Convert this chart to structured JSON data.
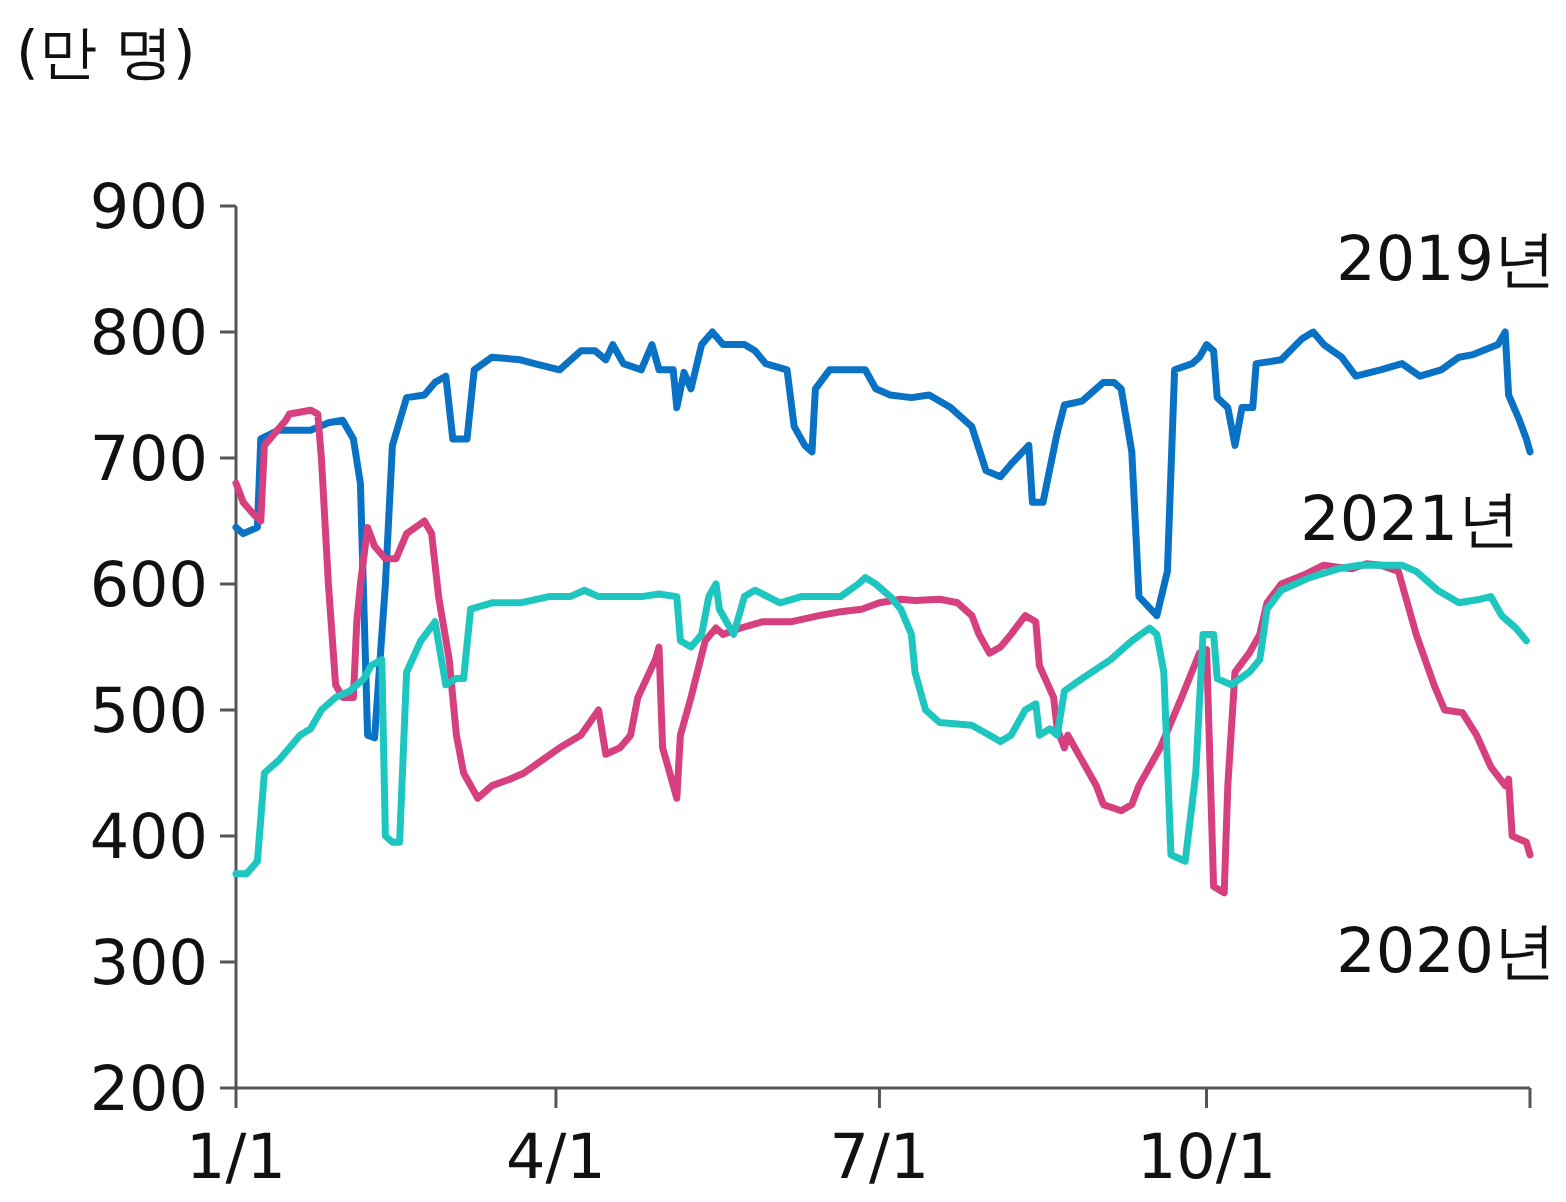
{
  "chart_data": {
    "type": "line",
    "ylabel": "(만 명)",
    "xlim": [
      "--01-01",
      "--12-31"
    ],
    "xticks": [
      {
        "value": "--01-01",
        "label": "1/1"
      },
      {
        "value": "--04-01",
        "label": "4/1"
      },
      {
        "value": "--07-01",
        "label": "7/1"
      },
      {
        "value": "--10-01",
        "label": "10/1"
      },
      {
        "value": "--12-31",
        "label": null
      }
    ],
    "ylim": [
      200,
      900
    ],
    "yticks": [
      200,
      300,
      400,
      500,
      600,
      700,
      800,
      900
    ],
    "series": [
      {
        "name": "2019년",
        "color": "#0a72c4",
        "x": [
          "--01-01",
          "--01-03",
          "--01-07",
          "--01-08",
          "--01-13",
          "--01-22",
          "--01-27",
          "--01-31",
          "--02-03",
          "--02-05",
          "--02-07",
          "--02-09",
          "--02-12",
          "--02-14",
          "--02-18",
          "--02-23",
          "--02-26",
          "--03-01",
          "--03-03",
          "--03-07",
          "--03-09",
          "--03-14",
          "--03-22",
          "--03-26",
          "--04-02",
          "--04-08",
          "--04-12",
          "--04-15",
          "--04-17",
          "--04-20",
          "--04-25",
          "--04-28",
          "--04-30",
          "--05-04",
          "--05-05",
          "--05-07",
          "--05-09",
          "--05-12",
          "--05-15",
          "--05-18",
          "--05-24",
          "--05-27",
          "--05-30",
          "--06-05",
          "--06-07",
          "--06-10",
          "--06-12",
          "--06-13",
          "--06-17",
          "--06-23",
          "--06-27",
          "--06-30",
          "--07-04",
          "--07-10",
          "--07-15",
          "--07-21",
          "--07-27",
          "--07-31",
          "--08-04",
          "--08-07",
          "--08-12",
          "--08-13",
          "--08-16",
          "--08-20",
          "--08-22",
          "--08-27",
          "--09-02",
          "--09-05",
          "--09-07",
          "--09-10",
          "--09-12",
          "--09-17",
          "--09-20",
          "--09-22",
          "--09-27",
          "--09-29",
          "--10-01",
          "--10-03",
          "--10-04",
          "--10-07",
          "--10-09",
          "--10-11",
          "--10-14",
          "--10-15",
          "--10-22",
          "--10-28",
          "--10-31",
          "--11-03",
          "--11-08",
          "--11-12",
          "--11-19",
          "--11-25",
          "--11-30",
          "--12-06",
          "--12-11",
          "--12-15",
          "--12-22",
          "--12-24",
          "--12-25",
          "--12-28",
          "--12-30",
          "--12-31"
        ],
        "values": [
          645,
          640,
          645,
          715,
          722,
          722,
          728,
          730,
          715,
          680,
          480,
          478,
          600,
          710,
          748,
          750,
          760,
          765,
          715,
          715,
          770,
          780,
          778,
          775,
          770,
          785,
          785,
          778,
          790,
          775,
          770,
          790,
          770,
          770,
          740,
          768,
          755,
          790,
          800,
          790,
          790,
          785,
          775,
          770,
          725,
          710,
          705,
          755,
          770,
          770,
          770,
          755,
          750,
          748,
          750,
          740,
          725,
          690,
          685,
          695,
          710,
          665,
          665,
          720,
          742,
          745,
          760,
          760,
          755,
          705,
          590,
          575,
          610,
          770,
          775,
          780,
          790,
          785,
          748,
          740,
          710,
          740,
          740,
          775,
          778,
          795,
          800,
          790,
          780,
          765,
          770,
          775,
          765,
          770,
          780,
          782,
          790,
          800,
          750,
          730,
          715,
          705
        ]
      },
      {
        "name": "2020년",
        "color": "#d6407f",
        "x": [
          "--01-01",
          "--01-03",
          "--01-06",
          "--01-08",
          "--01-09",
          "--01-12",
          "--01-15",
          "--01-16",
          "--01-22",
          "--01-24",
          "--01-25",
          "--01-27",
          "--01-29",
          "--01-31",
          "--02-03",
          "--02-04",
          "--02-05",
          "--02-07",
          "--02-09",
          "--02-12",
          "--02-15",
          "--02-18",
          "--02-23",
          "--02-25",
          "--02-27",
          "--03-02",
          "--03-04",
          "--03-06",
          "--03-10",
          "--03-14",
          "--03-19",
          "--03-23",
          "--03-28",
          "--04-02",
          "--04-08",
          "--04-13",
          "--04-15",
          "--04-19",
          "--04-22",
          "--04-24",
          "--04-29",
          "--04-30",
          "--05-01",
          "--05-03",
          "--05-05",
          "--05-06",
          "--05-09",
          "--05-13",
          "--05-16",
          "--05-18",
          "--05-23",
          "--05-29",
          "--06-06",
          "--06-14",
          "--06-20",
          "--06-26",
          "--07-01",
          "--07-07",
          "--07-11",
          "--07-18",
          "--07-23",
          "--07-27",
          "--07-29",
          "--08-01",
          "--08-04",
          "--08-07",
          "--08-11",
          "--08-14",
          "--08-15",
          "--08-19",
          "--08-20",
          "--08-22",
          "--08-23",
          "--08-27",
          "--08-31",
          "--09-02",
          "--09-07",
          "--09-10",
          "--09-12",
          "--09-18",
          "--09-24",
          "--09-29",
          "--10-01",
          "--10-03",
          "--10-06",
          "--10-07",
          "--10-09",
          "--10-13",
          "--10-16",
          "--10-18",
          "--10-22",
          "--10-29",
          "--11-03",
          "--11-08",
          "--11-11",
          "--11-15",
          "--11-19",
          "--11-24",
          "--11-29",
          "--12-04",
          "--12-07",
          "--12-12",
          "--12-16",
          "--12-20",
          "--12-24",
          "--12-25",
          "--12-26",
          "--12-30",
          "--12-31"
        ],
        "values": [
          680,
          665,
          655,
          650,
          710,
          720,
          730,
          735,
          738,
          735,
          700,
          600,
          520,
          510,
          510,
          570,
          600,
          645,
          630,
          620,
          620,
          640,
          650,
          640,
          590,
          540,
          480,
          450,
          430,
          440,
          445,
          450,
          460,
          470,
          480,
          500,
          465,
          470,
          480,
          510,
          540,
          550,
          470,
          450,
          430,
          480,
          510,
          555,
          565,
          560,
          565,
          570,
          570,
          575,
          578,
          580,
          585,
          588,
          587,
          588,
          585,
          575,
          560,
          545,
          550,
          560,
          575,
          570,
          535,
          510,
          485,
          470,
          480,
          460,
          440,
          425,
          420,
          425,
          440,
          470,
          510,
          545,
          548,
          360,
          355,
          440,
          530,
          545,
          560,
          585,
          600,
          608,
          615,
          613,
          612,
          616,
          615,
          610,
          560,
          520,
          500,
          498,
          480,
          455,
          440,
          445,
          400,
          395,
          385
        ]
      },
      {
        "name": "2021년",
        "color": "#1ec6c0",
        "x": [
          "--01-01",
          "--01-04",
          "--01-07",
          "--01-09",
          "--01-13",
          "--01-19",
          "--01-22",
          "--01-25",
          "--01-29",
          "--02-02",
          "--02-06",
          "--02-08",
          "--02-11",
          "--02-12",
          "--02-14",
          "--02-16",
          "--02-18",
          "--02-22",
          "--02-26",
          "--03-01",
          "--03-04",
          "--03-06",
          "--03-08",
          "--03-14",
          "--03-22",
          "--03-30",
          "--04-05",
          "--04-09",
          "--04-13",
          "--04-19",
          "--04-25",
          "--04-30",
          "--05-05",
          "--05-06",
          "--05-09",
          "--05-12",
          "--05-14",
          "--05-16",
          "--05-17",
          "--05-21",
          "--05-24",
          "--05-27",
          "--06-03",
          "--06-09",
          "--06-14",
          "--06-20",
          "--06-25",
          "--06-27",
          "--06-30",
          "--07-04",
          "--07-07",
          "--07-10",
          "--07-11",
          "--07-14",
          "--07-18",
          "--07-27",
          "--08-01",
          "--08-04",
          "--08-07",
          "--08-11",
          "--08-14",
          "--08-15",
          "--08-18",
          "--08-20",
          "--08-22",
          "--08-27",
          "--09-04",
          "--09-10",
          "--09-15",
          "--09-17",
          "--09-19",
          "--09-21",
          "--09-25",
          "--09-28",
          "--09-30",
          "--10-03",
          "--10-04",
          "--10-08",
          "--10-13",
          "--10-16",
          "--10-18",
          "--10-22",
          "--10-30",
          "--11-07",
          "--11-13",
          "--11-25",
          "--11-29",
          "--12-05",
          "--12-11",
          "--12-17",
          "--12-20",
          "--12-23",
          "--12-27",
          "--12-30"
        ],
        "values": [
          370,
          370,
          380,
          450,
          460,
          480,
          485,
          500,
          510,
          515,
          525,
          535,
          540,
          400,
          395,
          395,
          530,
          555,
          570,
          520,
          525,
          525,
          580,
          585,
          585,
          590,
          590,
          595,
          590,
          590,
          590,
          592,
          590,
          555,
          550,
          560,
          590,
          600,
          580,
          560,
          590,
          595,
          585,
          590,
          590,
          590,
          600,
          605,
          600,
          590,
          580,
          560,
          530,
          500,
          490,
          488,
          480,
          475,
          480,
          500,
          505,
          480,
          485,
          480,
          515,
          525,
          540,
          555,
          565,
          560,
          530,
          385,
          380,
          450,
          560,
          560,
          525,
          520,
          530,
          540,
          580,
          595,
          605,
          612,
          615,
          615,
          610,
          595,
          585,
          588,
          590,
          575,
          565,
          555
        ]
      }
    ]
  }
}
